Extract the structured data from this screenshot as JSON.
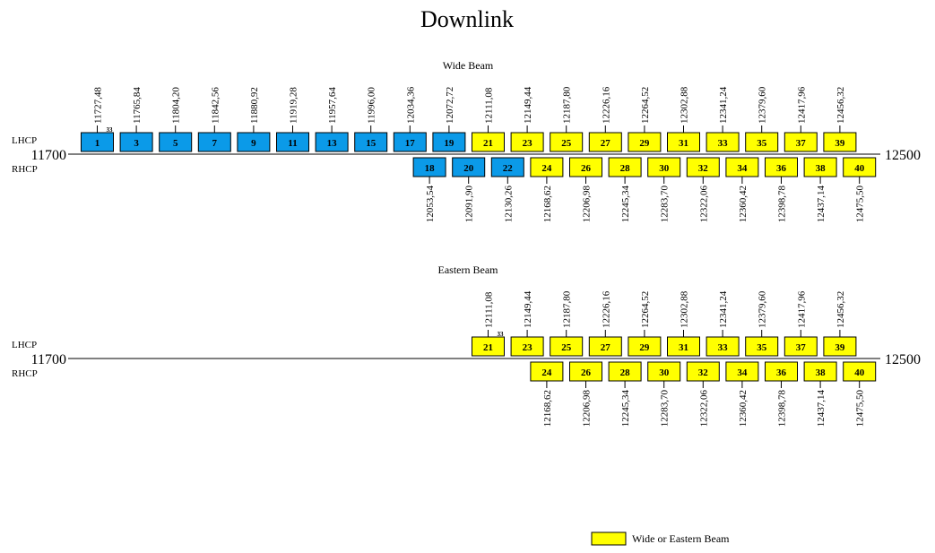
{
  "title": "Downlink",
  "colors": {
    "blue": "#0b9ae8",
    "yellow": "#ffff00",
    "line": "#000000"
  },
  "legend": {
    "label": "Wide or Eastern Beam",
    "color": "#ffff00"
  },
  "sections": [
    {
      "id": "wide",
      "title": "Wide Beam",
      "lhcp_label": "LHCP",
      "rhcp_label": "RHCP",
      "axis_start": "11700",
      "axis_end": "12500",
      "note": "33",
      "lhcp": [
        {
          "ch": "1",
          "freq": "11727,48",
          "color": "blue"
        },
        {
          "ch": "3",
          "freq": "11765,84",
          "color": "blue"
        },
        {
          "ch": "5",
          "freq": "11804,20",
          "color": "blue"
        },
        {
          "ch": "7",
          "freq": "11842,56",
          "color": "blue"
        },
        {
          "ch": "9",
          "freq": "11880,92",
          "color": "blue"
        },
        {
          "ch": "11",
          "freq": "11919,28",
          "color": "blue"
        },
        {
          "ch": "13",
          "freq": "11957,64",
          "color": "blue"
        },
        {
          "ch": "15",
          "freq": "11996,00",
          "color": "blue"
        },
        {
          "ch": "17",
          "freq": "12034,36",
          "color": "blue"
        },
        {
          "ch": "19",
          "freq": "12072,72",
          "color": "blue"
        },
        {
          "ch": "21",
          "freq": "12111,08",
          "color": "yellow"
        },
        {
          "ch": "23",
          "freq": "12149,44",
          "color": "yellow"
        },
        {
          "ch": "25",
          "freq": "12187,80",
          "color": "yellow"
        },
        {
          "ch": "27",
          "freq": "12226,16",
          "color": "yellow"
        },
        {
          "ch": "29",
          "freq": "12264,52",
          "color": "yellow"
        },
        {
          "ch": "31",
          "freq": "12302,88",
          "color": "yellow"
        },
        {
          "ch": "33",
          "freq": "12341,24",
          "color": "yellow"
        },
        {
          "ch": "35",
          "freq": "12379,60",
          "color": "yellow"
        },
        {
          "ch": "37",
          "freq": "12417,96",
          "color": "yellow"
        },
        {
          "ch": "39",
          "freq": "12456,32",
          "color": "yellow"
        }
      ],
      "rhcp": [
        {
          "ch": "18",
          "freq": "12053,54",
          "color": "blue"
        },
        {
          "ch": "20",
          "freq": "12091,90",
          "color": "blue"
        },
        {
          "ch": "22",
          "freq": "12130,26",
          "color": "blue"
        },
        {
          "ch": "24",
          "freq": "12168,62",
          "color": "yellow"
        },
        {
          "ch": "26",
          "freq": "12206,98",
          "color": "yellow"
        },
        {
          "ch": "28",
          "freq": "12245,34",
          "color": "yellow"
        },
        {
          "ch": "30",
          "freq": "12283,70",
          "color": "yellow"
        },
        {
          "ch": "32",
          "freq": "12322,06",
          "color": "yellow"
        },
        {
          "ch": "34",
          "freq": "12360,42",
          "color": "yellow"
        },
        {
          "ch": "36",
          "freq": "12398,78",
          "color": "yellow"
        },
        {
          "ch": "38",
          "freq": "12437,14",
          "color": "yellow"
        },
        {
          "ch": "40",
          "freq": "12475,50",
          "color": "yellow"
        }
      ]
    },
    {
      "id": "eastern",
      "title": "Eastern Beam",
      "lhcp_label": "LHCP",
      "rhcp_label": "RHCP",
      "axis_start": "11700",
      "axis_end": "12500",
      "note": "33",
      "lhcp": [
        {
          "ch": "21",
          "freq": "12111,08",
          "color": "yellow"
        },
        {
          "ch": "23",
          "freq": "12149,44",
          "color": "yellow"
        },
        {
          "ch": "25",
          "freq": "12187,80",
          "color": "yellow"
        },
        {
          "ch": "27",
          "freq": "12226,16",
          "color": "yellow"
        },
        {
          "ch": "29",
          "freq": "12264,52",
          "color": "yellow"
        },
        {
          "ch": "31",
          "freq": "12302,88",
          "color": "yellow"
        },
        {
          "ch": "33",
          "freq": "12341,24",
          "color": "yellow"
        },
        {
          "ch": "35",
          "freq": "12379,60",
          "color": "yellow"
        },
        {
          "ch": "37",
          "freq": "12417,96",
          "color": "yellow"
        },
        {
          "ch": "39",
          "freq": "12456,32",
          "color": "yellow"
        }
      ],
      "rhcp": [
        {
          "ch": "24",
          "freq": "12168,62",
          "color": "yellow"
        },
        {
          "ch": "26",
          "freq": "12206,98",
          "color": "yellow"
        },
        {
          "ch": "28",
          "freq": "12245,34",
          "color": "yellow"
        },
        {
          "ch": "30",
          "freq": "12283,70",
          "color": "yellow"
        },
        {
          "ch": "32",
          "freq": "12322,06",
          "color": "yellow"
        },
        {
          "ch": "34",
          "freq": "12360,42",
          "color": "yellow"
        },
        {
          "ch": "36",
          "freq": "12398,78",
          "color": "yellow"
        },
        {
          "ch": "38",
          "freq": "12437,14",
          "color": "yellow"
        },
        {
          "ch": "40",
          "freq": "12475,50",
          "color": "yellow"
        }
      ]
    }
  ]
}
